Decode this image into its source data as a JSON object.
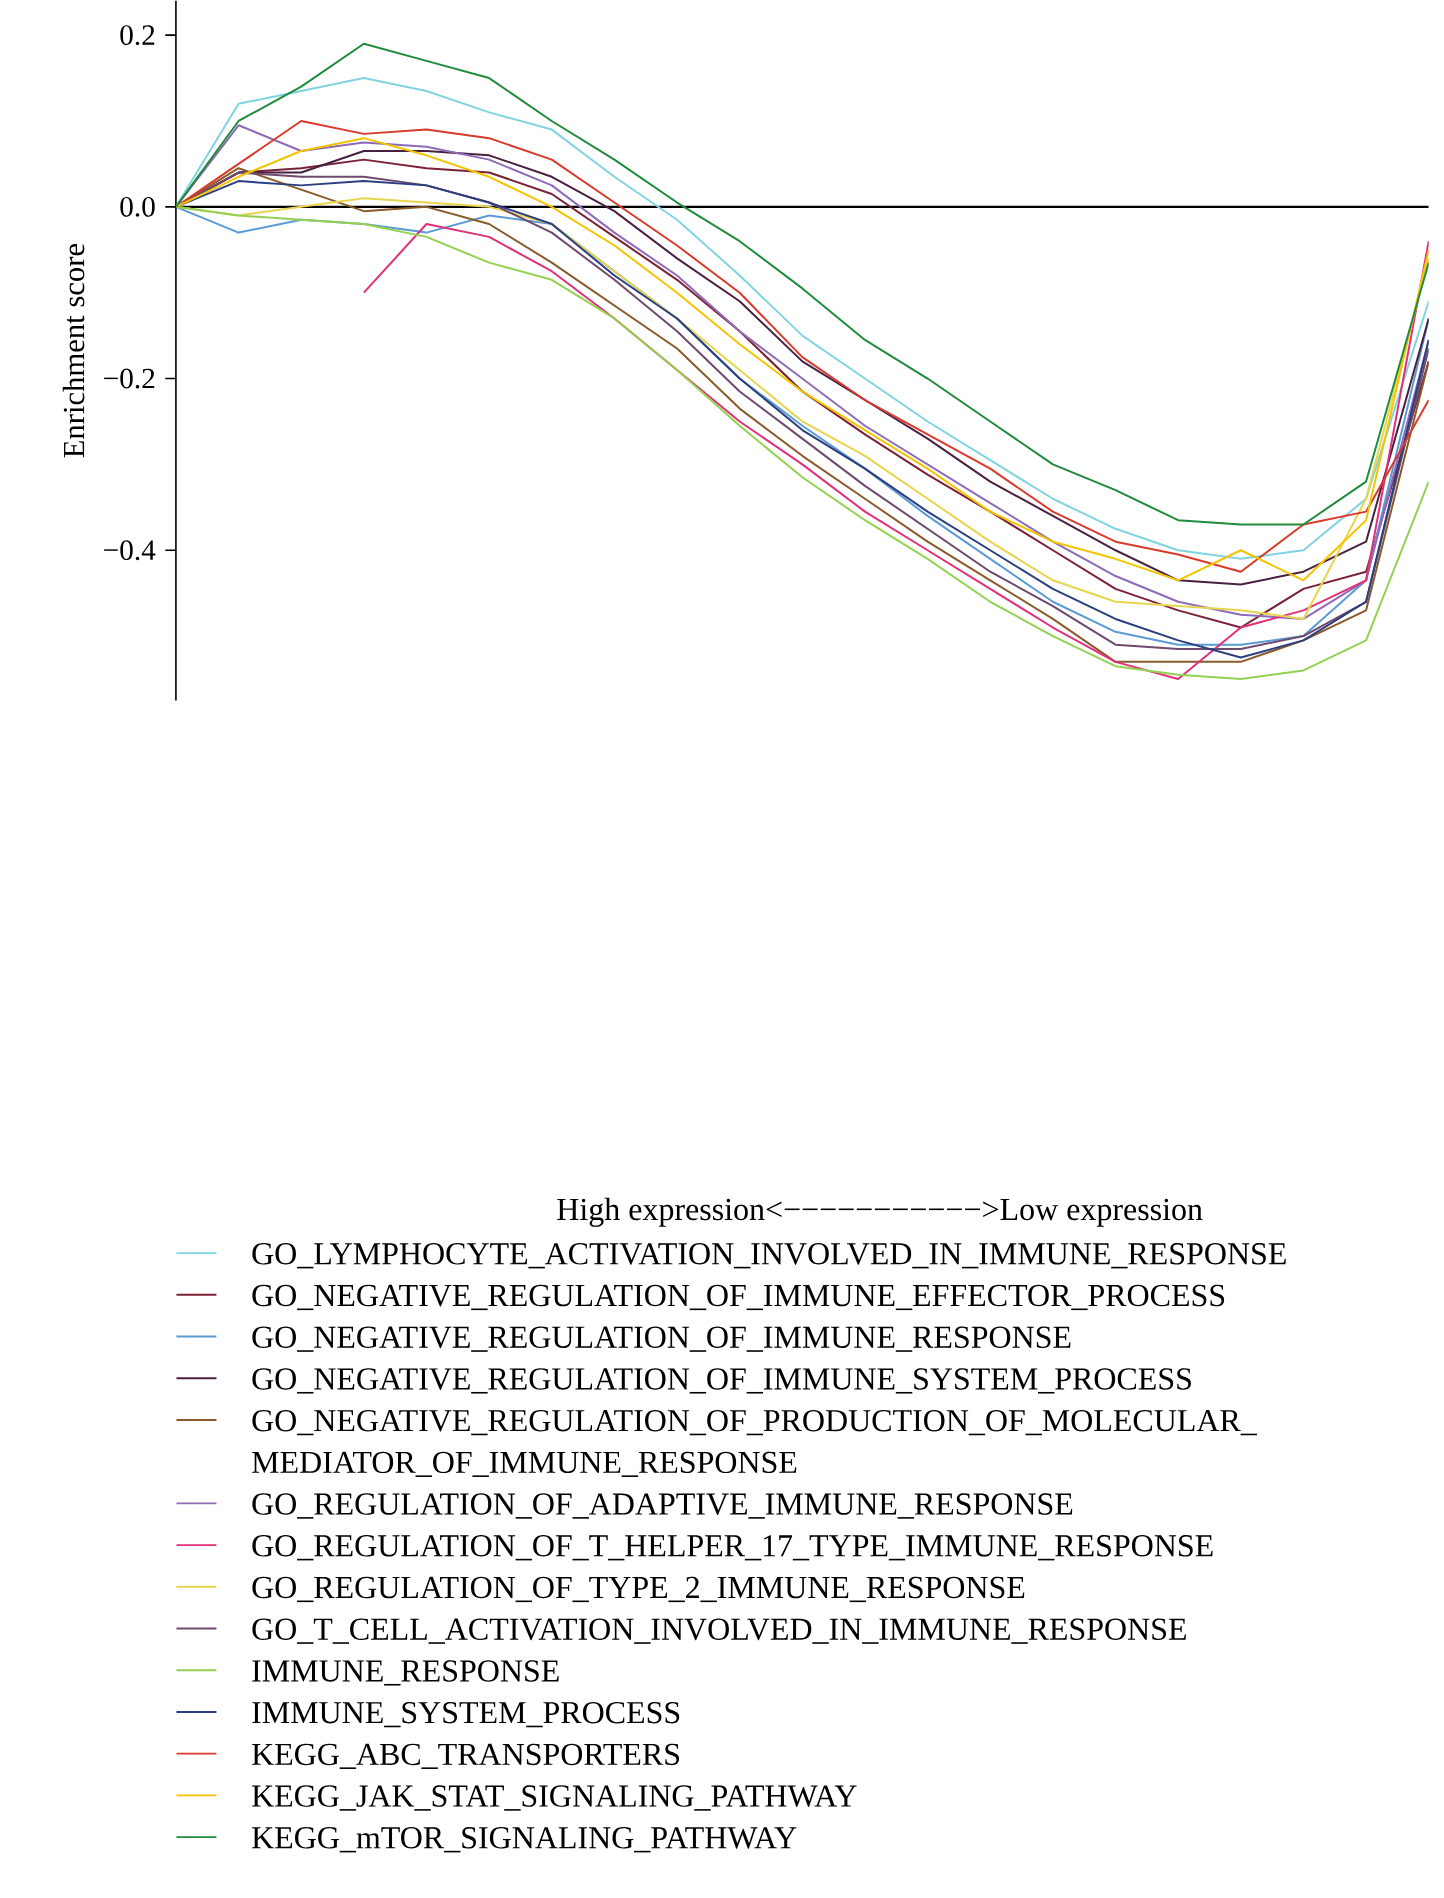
{
  "chart_data": {
    "type": "line",
    "ylabel": "Enrichment score",
    "annotations": [
      "High expression<−−−−−−−−−−−>Low expression"
    ],
    "categories": [
      null,
      null,
      null,
      null,
      null,
      null,
      null,
      null,
      null,
      null,
      null,
      null,
      null,
      null,
      null,
      null,
      null,
      null,
      null,
      null,
      null
    ],
    "ylim": [
      -0.575,
      0.24
    ],
    "yticks": [
      0.2,
      {
        "value": 0,
        "label": "0.0"
      },
      {
        "value": -0.2,
        "label": "−0.2"
      },
      {
        "value": -0.4,
        "label": "−0.4"
      }
    ],
    "tick_labels": "y",
    "legend": "bottom",
    "marker": "none",
    "line_style": "solid",
    "ref_lines": [
      {
        "axis": "y",
        "value": 0,
        "color": "#000000"
      }
    ],
    "series": [
      {
        "name": "GO_LYMPHOCYTE_ACTIVATION_INVOLVED_IN_IMMUNE_RESPONSE",
        "color": "#7fd4e0",
        "values": [
          0,
          0.12,
          0.135,
          0.15,
          0.135,
          0.11,
          0.09,
          0.035,
          -0.015,
          -0.08,
          -0.15,
          -0.2,
          -0.25,
          -0.295,
          -0.34,
          -0.375,
          -0.4,
          -0.41,
          -0.4,
          -0.34,
          -0.11
        ]
      },
      {
        "name": "GO_NEGATIVE_REGULATION_OF_IMMUNE_EFFECTOR_PROCESS",
        "color": "#7b2135",
        "values": [
          0,
          0.04,
          0.045,
          0.055,
          0.045,
          0.04,
          0.015,
          -0.035,
          -0.085,
          -0.145,
          -0.215,
          -0.265,
          -0.312,
          -0.355,
          -0.4,
          -0.445,
          -0.47,
          -0.49,
          -0.445,
          -0.425,
          -0.18
        ]
      },
      {
        "name": "GO_NEGATIVE_REGULATION_OF_IMMUNE_RESPONSE",
        "color": "#5b9bd5",
        "values": [
          0,
          -0.03,
          -0.015,
          -0.02,
          -0.03,
          -0.01,
          -0.02,
          -0.075,
          -0.13,
          -0.2,
          -0.255,
          -0.305,
          -0.36,
          -0.41,
          -0.46,
          -0.495,
          -0.51,
          -0.51,
          -0.5,
          -0.435,
          -0.13
        ]
      },
      {
        "name": "GO_NEGATIVE_REGULATION_OF_IMMUNE_SYSTEM_PROCESS",
        "color": "#4a2040",
        "values": [
          0,
          0.04,
          0.04,
          0.065,
          0.065,
          0.06,
          0.035,
          -0.005,
          -0.06,
          -0.11,
          -0.18,
          -0.225,
          -0.27,
          -0.32,
          -0.36,
          -0.4,
          -0.435,
          -0.44,
          -0.425,
          -0.39,
          -0.13
        ]
      },
      {
        "name": "GO_NEGATIVE_REGULATION_OF_PRODUCTION_OF_MOLECULAR_MEDIATOR_OF_IMMUNE_RESPONSE",
        "color": "#8b5a2b",
        "values": [
          0,
          0.045,
          0.02,
          -0.005,
          0,
          -0.02,
          -0.065,
          -0.115,
          -0.165,
          -0.235,
          -0.29,
          -0.34,
          -0.39,
          -0.435,
          -0.48,
          -0.53,
          -0.53,
          -0.53,
          -0.505,
          -0.47,
          -0.18
        ]
      },
      {
        "name": "GO_REGULATION_OF_ADAPTIVE_IMMUNE_RESPONSE",
        "color": "#8e6bb8",
        "values": [
          0,
          0.095,
          0.065,
          0.075,
          0.07,
          0.055,
          0.025,
          -0.03,
          -0.08,
          -0.145,
          -0.2,
          -0.255,
          -0.3,
          -0.345,
          -0.39,
          -0.43,
          -0.46,
          -0.475,
          -0.48,
          -0.435,
          -0.155
        ]
      },
      {
        "name": "GO_REGULATION_OF_T_HELPER_17_TYPE_IMMUNE_RESPONSE",
        "color": "#e0307a",
        "values": [
          null,
          null,
          null,
          -0.1,
          -0.02,
          -0.035,
          -0.075,
          -0.13,
          -0.19,
          -0.25,
          -0.3,
          -0.355,
          -0.4,
          -0.445,
          -0.49,
          -0.53,
          -0.55,
          -0.49,
          -0.47,
          -0.435,
          -0.04
        ]
      },
      {
        "name": "GO_REGULATION_OF_TYPE_2_IMMUNE_RESPONSE",
        "color": "#e8d44d",
        "values": [
          0,
          -0.01,
          0,
          0.01,
          0.005,
          0,
          -0.02,
          -0.075,
          -0.13,
          -0.19,
          -0.25,
          -0.29,
          -0.34,
          -0.39,
          -0.435,
          -0.46,
          -0.465,
          -0.47,
          -0.48,
          -0.34,
          -0.06
        ]
      },
      {
        "name": "GO_T_CELL_ACTIVATION_INVOLVED_IN_IMMUNE_RESPONSE",
        "color": "#6e4a6e",
        "values": [
          0,
          0.04,
          0.035,
          0.035,
          0.025,
          0.005,
          -0.03,
          -0.085,
          -0.145,
          -0.215,
          -0.27,
          -0.325,
          -0.375,
          -0.425,
          -0.465,
          -0.51,
          -0.515,
          -0.515,
          -0.5,
          -0.46,
          -0.165
        ]
      },
      {
        "name": "IMMUNE_RESPONSE",
        "color": "#93d150",
        "values": [
          0,
          -0.01,
          -0.015,
          -0.02,
          -0.035,
          -0.065,
          -0.085,
          -0.13,
          -0.19,
          -0.255,
          -0.315,
          -0.365,
          -0.41,
          -0.46,
          -0.5,
          -0.535,
          -0.545,
          -0.55,
          -0.54,
          -0.505,
          -0.32
        ]
      },
      {
        "name": "IMMUNE_SYSTEM_PROCESS",
        "color": "#2b3f80",
        "values": [
          0,
          0.03,
          0.025,
          0.03,
          0.025,
          0.005,
          -0.02,
          -0.08,
          -0.13,
          -0.2,
          -0.26,
          -0.305,
          -0.355,
          -0.4,
          -0.445,
          -0.48,
          -0.505,
          -0.525,
          -0.505,
          -0.46,
          -0.155
        ]
      },
      {
        "name": "KEGG_ABC_TRANSPORTERS",
        "color": "#d93a2b",
        "values": [
          0,
          0.05,
          0.1,
          0.085,
          0.09,
          0.08,
          0.055,
          0.005,
          -0.045,
          -0.1,
          -0.175,
          -0.225,
          -0.265,
          -0.305,
          -0.355,
          -0.39,
          -0.405,
          -0.425,
          -0.37,
          -0.355,
          -0.225
        ]
      },
      {
        "name": "KEGG_JAK_STAT_SIGNALING_PATHWAY",
        "color": "#f5c400",
        "values": [
          0,
          0.035,
          0.065,
          0.08,
          0.06,
          0.035,
          0,
          -0.045,
          -0.1,
          -0.16,
          -0.215,
          -0.26,
          -0.305,
          -0.355,
          -0.39,
          -0.41,
          -0.435,
          -0.4,
          -0.435,
          -0.365,
          -0.05
        ]
      },
      {
        "name": "KEGG_mTOR_SIGNALING_PATHWAY",
        "color": "#1e8c3c",
        "values": [
          0,
          0.1,
          0.14,
          0.19,
          0.17,
          0.15,
          0.1,
          0.055,
          0.005,
          -0.04,
          -0.095,
          -0.155,
          -0.2,
          -0.25,
          -0.3,
          -0.33,
          -0.365,
          -0.37,
          -0.37,
          -0.32,
          -0.065
        ]
      }
    ]
  }
}
